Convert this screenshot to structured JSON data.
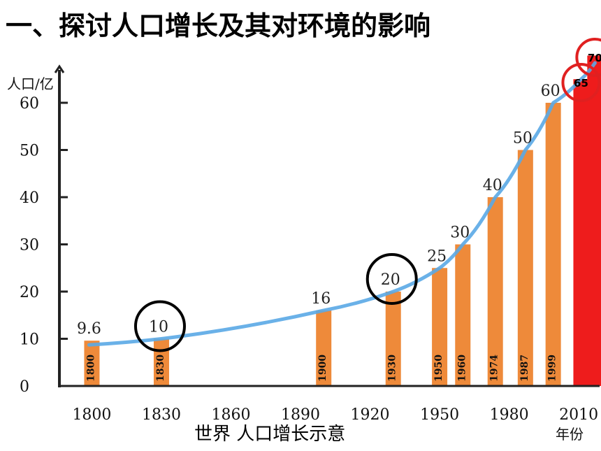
{
  "title": "一、探讨人口增长及其对环境的影响",
  "caption": "世界  人口增长示意",
  "chart_data": {
    "type": "bar",
    "ylabel": "人口/亿",
    "xlabel": "年份",
    "ylim": [
      0,
      70
    ],
    "yticks": [
      0,
      10,
      20,
      30,
      40,
      50,
      60
    ],
    "xticks": [
      1800,
      1830,
      1860,
      1890,
      1920,
      1950,
      1980,
      2010
    ],
    "xlim": [
      1786,
      2019
    ],
    "series": [
      {
        "bars": [
          {
            "year": 1800,
            "value": 9.6,
            "label": "9.6",
            "bar_label": "1800",
            "color": "#ee8a3a"
          },
          {
            "year": 1830,
            "value": 10,
            "label": "10",
            "bar_label": "1830",
            "color": "#ee8a3a",
            "circled": true
          },
          {
            "year": 1900,
            "value": 16,
            "label": "16",
            "bar_label": "1900",
            "color": "#ee8a3a"
          },
          {
            "year": 1930,
            "value": 20,
            "label": "20",
            "bar_label": "1930",
            "color": "#ee8a3a",
            "circled": true
          },
          {
            "year": 1950,
            "value": 25,
            "label": "25",
            "bar_label": "1950",
            "color": "#ee8a3a"
          },
          {
            "year": 1960,
            "value": 30,
            "label": "30",
            "bar_label": "1960",
            "color": "#ee8a3a"
          },
          {
            "year": 1974,
            "value": 40,
            "label": "40",
            "bar_label": "1974",
            "color": "#ee8a3a"
          },
          {
            "year": 1987,
            "value": 50,
            "label": "50",
            "bar_label": "1987",
            "color": "#ee8a3a"
          },
          {
            "year": 1999,
            "value": 60,
            "label": "60",
            "bar_label": "1999",
            "color": "#ee8a3a"
          },
          {
            "year": 2011,
            "value": 65,
            "label": "65",
            "bar_label": "",
            "color": "#ee1c1c",
            "circled": true
          },
          {
            "year": 2017,
            "value": 70,
            "label": "70",
            "bar_label": "",
            "color": "#ee1c1c",
            "circled": true
          }
        ]
      }
    ],
    "grid": false,
    "trend_line_color": "#5aa9e6",
    "axis_color": "#222222",
    "highlight_circle_colors": {
      "black": "#000000",
      "red": "#e02020"
    }
  }
}
